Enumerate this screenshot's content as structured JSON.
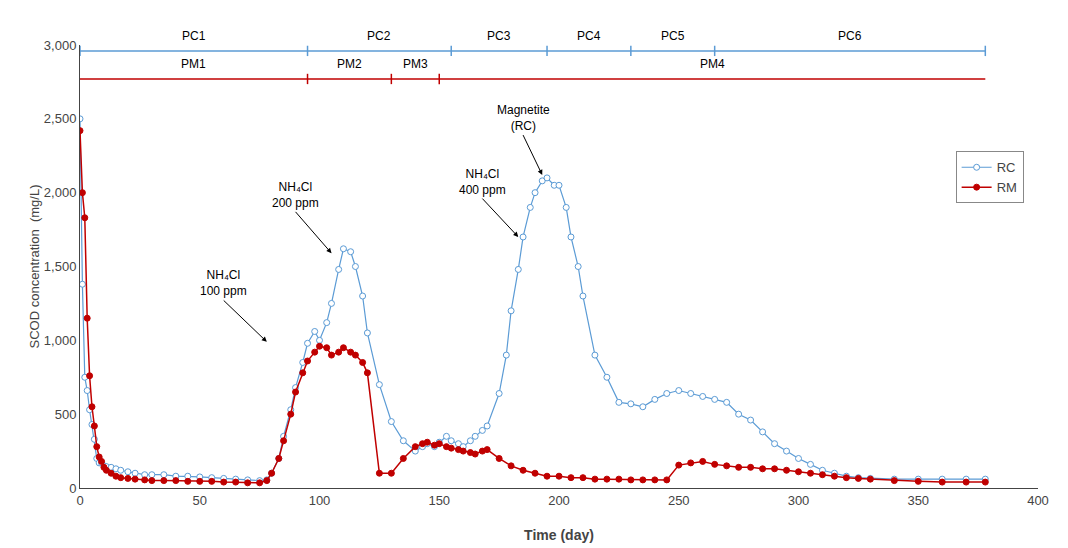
{
  "chart_data": {
    "type": "line",
    "series": [
      {
        "name": "RC",
        "color": "#5B9BD5",
        "marker": "open circle",
        "x": [
          0,
          1,
          2,
          3,
          4,
          5,
          6,
          7,
          8,
          9,
          10,
          11,
          13,
          15,
          17,
          20,
          23,
          27,
          30,
          35,
          40,
          45,
          50,
          55,
          60,
          65,
          70,
          75,
          78,
          80,
          83,
          85,
          88,
          90,
          93,
          95,
          98,
          100,
          103,
          105,
          108,
          110,
          113,
          115,
          118,
          120,
          125,
          130,
          135,
          140,
          143,
          145,
          148,
          150,
          153,
          155,
          158,
          160,
          163,
          165,
          168,
          170,
          175,
          178,
          180,
          183,
          185,
          188,
          190,
          193,
          195,
          198,
          200,
          203,
          205,
          208,
          210,
          215,
          220,
          225,
          230,
          235,
          240,
          245,
          250,
          255,
          260,
          265,
          270,
          275,
          280,
          285,
          290,
          295,
          300,
          305,
          310,
          315,
          320,
          325,
          330,
          340,
          350,
          360,
          370,
          378
        ],
        "values": [
          2500,
          1380,
          750,
          660,
          530,
          430,
          330,
          200,
          170,
          170,
          150,
          145,
          140,
          130,
          120,
          110,
          100,
          90,
          90,
          90,
          80,
          80,
          75,
          70,
          65,
          60,
          55,
          50,
          55,
          100,
          200,
          350,
          530,
          680,
          850,
          980,
          1060,
          1000,
          1120,
          1250,
          1480,
          1620,
          1600,
          1500,
          1300,
          1050,
          700,
          450,
          320,
          250,
          280,
          300,
          280,
          310,
          350,
          320,
          300,
          280,
          320,
          350,
          390,
          420,
          640,
          900,
          1200,
          1480,
          1700,
          1900,
          2000,
          2080,
          2100,
          2050,
          2050,
          1900,
          1700,
          1500,
          1300,
          900,
          750,
          580,
          570,
          550,
          600,
          640,
          660,
          640,
          620,
          600,
          580,
          500,
          460,
          380,
          300,
          250,
          200,
          160,
          120,
          100,
          80,
          70,
          65,
          60,
          60,
          60,
          60,
          60
        ]
      },
      {
        "name": "RM",
        "color": "#C00000",
        "marker": "circle",
        "x": [
          0,
          1,
          2,
          3,
          4,
          5,
          6,
          7,
          8,
          9,
          10,
          11,
          13,
          15,
          17,
          20,
          23,
          27,
          30,
          35,
          40,
          45,
          50,
          55,
          60,
          65,
          70,
          75,
          78,
          80,
          83,
          85,
          88,
          90,
          93,
          95,
          98,
          100,
          103,
          105,
          108,
          110,
          113,
          115,
          118,
          120,
          125,
          130,
          135,
          140,
          143,
          145,
          148,
          150,
          153,
          155,
          158,
          160,
          163,
          165,
          168,
          170,
          175,
          180,
          185,
          190,
          195,
          200,
          205,
          210,
          215,
          220,
          225,
          230,
          235,
          240,
          245,
          250,
          255,
          260,
          265,
          270,
          275,
          280,
          285,
          290,
          295,
          300,
          305,
          310,
          315,
          320,
          325,
          330,
          340,
          350,
          360,
          370,
          378
        ],
        "values": [
          2420,
          2000,
          1830,
          1150,
          760,
          550,
          420,
          280,
          210,
          180,
          140,
          120,
          100,
          80,
          70,
          65,
          60,
          55,
          50,
          50,
          50,
          45,
          45,
          45,
          40,
          40,
          35,
          35,
          50,
          100,
          200,
          320,
          500,
          650,
          780,
          860,
          920,
          960,
          950,
          900,
          920,
          950,
          920,
          900,
          850,
          780,
          100,
          100,
          200,
          280,
          300,
          310,
          290,
          300,
          280,
          270,
          260,
          250,
          240,
          230,
          250,
          260,
          200,
          150,
          120,
          100,
          80,
          80,
          70,
          70,
          60,
          60,
          60,
          55,
          55,
          55,
          55,
          155,
          170,
          180,
          160,
          150,
          140,
          140,
          130,
          130,
          120,
          110,
          100,
          90,
          80,
          70,
          65,
          60,
          50,
          45,
          40,
          40,
          40
        ]
      }
    ],
    "pc_segments": [
      {
        "label": "PC1",
        "x_start": 0,
        "x_end": 95
      },
      {
        "label": "PC2",
        "x_start": 95,
        "x_end": 155
      },
      {
        "label": "PC3",
        "x_start": 155,
        "x_end": 195
      },
      {
        "label": "PC4",
        "x_start": 195,
        "x_end": 230
      },
      {
        "label": "PC5",
        "x_start": 230,
        "x_end": 265
      },
      {
        "label": "PC6",
        "x_start": 265,
        "x_end": 378
      }
    ],
    "pm_segments": [
      {
        "label": "PM1",
        "x_start": 0,
        "x_end": 95
      },
      {
        "label": "PM2",
        "x_start": 95,
        "x_end": 130
      },
      {
        "label": "PM3",
        "x_start": 130,
        "x_end": 150
      },
      {
        "label": "PM4",
        "x_start": 150,
        "x_end": 378
      }
    ],
    "pc_y": 2960,
    "pm_y": 2770,
    "pc_color": "#5B9BD5",
    "pm_color": "#C00000",
    "annotations": [
      {
        "text": "NH₄Cl\n100 ppm",
        "xy": [
          78,
          990
        ],
        "xytext": [
          60,
          1270
        ]
      },
      {
        "text": "NH₄Cl\n200 ppm",
        "xy": [
          105,
          1590
        ],
        "xytext": [
          90,
          1870
        ]
      },
      {
        "text": "Magnetite\n(RC)",
        "xy": [
          193,
          2120
        ],
        "xytext": [
          185,
          2390
        ]
      },
      {
        "text": "NH₄Cl\n400 ppm",
        "xy": [
          183,
          1700
        ],
        "xytext": [
          168,
          1960
        ]
      }
    ],
    "xlabel": "Time (day)",
    "ylabel": "SCOD concentration  (mg/L)",
    "xlim": [
      0,
      400
    ],
    "ylim": [
      0,
      3000
    ],
    "xticks": [
      0,
      50,
      100,
      150,
      200,
      250,
      300,
      350,
      400
    ],
    "yticks": [
      0,
      500,
      {
        "value": 1000,
        "label": "1,000"
      },
      {
        "value": 1500,
        "label": "1,500"
      },
      {
        "value": 2000,
        "label": "2,000"
      },
      {
        "value": 2500,
        "label": "2,500"
      },
      {
        "value": 3000,
        "label": "3,000"
      }
    ],
    "grid": false,
    "legend": "upper right"
  }
}
